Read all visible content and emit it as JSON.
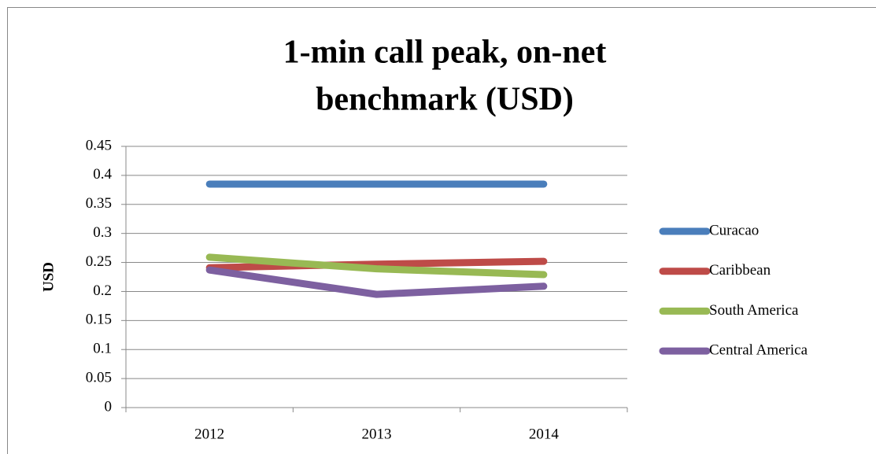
{
  "chart_data": {
    "type": "line",
    "title": [
      "1-min call peak, on-net",
      "benchmark (USD)"
    ],
    "y_label": "USD",
    "categories": [
      "2012",
      "2013",
      "2014"
    ],
    "series": [
      {
        "name": "Curacao",
        "color": "#4a7ebb",
        "values": [
          0.385,
          0.385,
          0.385
        ]
      },
      {
        "name": "Caribbean",
        "color": "#be4b48",
        "values": [
          0.241,
          0.247,
          0.252
        ]
      },
      {
        "name": "South America",
        "color": "#98b954",
        "values": [
          0.259,
          0.239,
          0.229
        ]
      },
      {
        "name": "Central America",
        "color": "#7d60a0",
        "values": [
          0.237,
          0.195,
          0.209
        ]
      }
    ],
    "ylim": [
      0,
      0.45
    ],
    "yticks": [
      0,
      0.05,
      0.1,
      0.15,
      0.2,
      0.25,
      0.3,
      0.35,
      0.4,
      0.45
    ],
    "grid": true,
    "legend": "right"
  }
}
